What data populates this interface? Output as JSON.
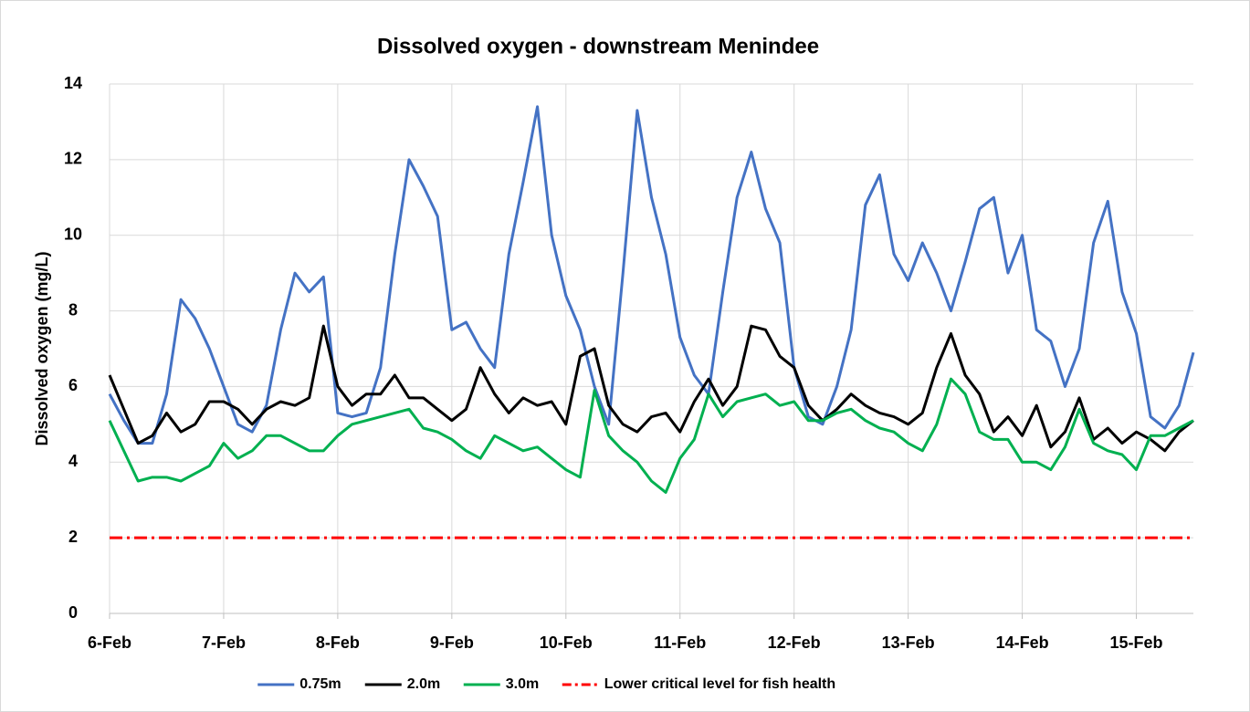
{
  "chart_data": {
    "type": "line",
    "title": "Dissolved oxygen - downstream Menindee",
    "y_label": "Dissolved oxygen (mg/L)",
    "xlim": [
      6,
      15.5
    ],
    "xticks": [
      {
        "value": 6,
        "label": "6-Feb"
      },
      {
        "value": 7,
        "label": "7-Feb"
      },
      {
        "value": 8,
        "label": "8-Feb"
      },
      {
        "value": 9,
        "label": "9-Feb"
      },
      {
        "value": 10,
        "label": "10-Feb"
      },
      {
        "value": 11,
        "label": "11-Feb"
      },
      {
        "value": 12,
        "label": "12-Feb"
      },
      {
        "value": 13,
        "label": "13-Feb"
      },
      {
        "value": 14,
        "label": "14-Feb"
      },
      {
        "value": 15,
        "label": "15-Feb"
      }
    ],
    "ylim": [
      0,
      14
    ],
    "yticks": [
      0,
      2,
      4,
      6,
      8,
      10,
      12,
      14
    ],
    "grid": true,
    "legend": "bottom",
    "x": [
      6,
      6.125,
      6.25,
      6.375,
      6.5,
      6.625,
      6.75,
      6.875,
      7,
      7.125,
      7.25,
      7.375,
      7.5,
      7.625,
      7.75,
      7.875,
      8,
      8.125,
      8.25,
      8.375,
      8.5,
      8.625,
      8.75,
      8.875,
      9,
      9.125,
      9.25,
      9.375,
      9.5,
      9.625,
      9.75,
      9.875,
      10,
      10.125,
      10.25,
      10.375,
      10.5,
      10.625,
      10.75,
      10.875,
      11,
      11.125,
      11.25,
      11.375,
      11.5,
      11.625,
      11.75,
      11.875,
      12,
      12.125,
      12.25,
      12.375,
      12.5,
      12.625,
      12.75,
      12.875,
      13,
      13.125,
      13.25,
      13.375,
      13.5,
      13.625,
      13.75,
      13.875,
      14,
      14.125,
      14.25,
      14.375,
      14.5,
      14.625,
      14.75,
      14.875,
      15,
      15.125,
      15.25,
      15.375,
      15.5
    ],
    "series": [
      {
        "name": "0.75m",
        "color": "#4472c4",
        "values": [
          5.8,
          5.1,
          4.5,
          4.5,
          5.8,
          8.3,
          7.8,
          7.0,
          6.0,
          5.0,
          4.8,
          5.5,
          7.5,
          9.0,
          8.5,
          8.9,
          5.3,
          5.2,
          5.3,
          6.5,
          9.5,
          12.0,
          11.3,
          10.5,
          7.5,
          7.7,
          7.0,
          6.5,
          9.5,
          11.4,
          13.4,
          10.0,
          8.4,
          7.5,
          6.0,
          5.0,
          9.0,
          13.3,
          11.0,
          9.5,
          7.3,
          6.3,
          5.8,
          8.5,
          11.0,
          12.2,
          10.7,
          9.8,
          6.5,
          5.2,
          5.0,
          6.0,
          7.5,
          10.8,
          11.6,
          9.5,
          8.8,
          9.8,
          9.0,
          8.0,
          9.3,
          10.7,
          11.0,
          9.0,
          10.0,
          7.5,
          7.2,
          6.0,
          7.0,
          9.8,
          10.9,
          8.5,
          7.4,
          5.2,
          4.9,
          5.5,
          6.9
        ]
      },
      {
        "name": "2.0m",
        "color": "#000000",
        "values": [
          6.3,
          5.4,
          4.5,
          4.7,
          5.3,
          4.8,
          5.0,
          5.6,
          5.6,
          5.4,
          5.0,
          5.4,
          5.6,
          5.5,
          5.7,
          7.6,
          6.0,
          5.5,
          5.8,
          5.8,
          6.3,
          5.7,
          5.7,
          5.4,
          5.1,
          5.4,
          6.5,
          5.8,
          5.3,
          5.7,
          5.5,
          5.6,
          5.0,
          6.8,
          7.0,
          5.5,
          5.0,
          4.8,
          5.2,
          5.3,
          4.8,
          5.6,
          6.2,
          5.5,
          6.0,
          7.6,
          7.5,
          6.8,
          6.5,
          5.5,
          5.1,
          5.4,
          5.8,
          5.5,
          5.3,
          5.2,
          5.0,
          5.3,
          6.5,
          7.4,
          6.3,
          5.8,
          4.8,
          5.2,
          4.7,
          5.5,
          4.4,
          4.8,
          5.7,
          4.6,
          4.9,
          4.5,
          4.8,
          4.6,
          4.3,
          4.8,
          5.1
        ]
      },
      {
        "name": "3.0m",
        "color": "#00b050",
        "values": [
          5.1,
          4.3,
          3.5,
          3.6,
          3.6,
          3.5,
          3.7,
          3.9,
          4.5,
          4.1,
          4.3,
          4.7,
          4.7,
          4.5,
          4.3,
          4.3,
          4.7,
          5.0,
          5.1,
          5.2,
          5.3,
          5.4,
          4.9,
          4.8,
          4.6,
          4.3,
          4.1,
          4.7,
          4.5,
          4.3,
          4.4,
          4.1,
          3.8,
          3.6,
          5.9,
          4.7,
          4.3,
          4.0,
          3.5,
          3.2,
          4.1,
          4.6,
          5.8,
          5.2,
          5.6,
          5.7,
          5.8,
          5.5,
          5.6,
          5.1,
          5.1,
          5.3,
          5.4,
          5.1,
          4.9,
          4.8,
          4.5,
          4.3,
          5.0,
          6.2,
          5.8,
          4.8,
          4.6,
          4.6,
          4.0,
          4.0,
          3.8,
          4.4,
          5.4,
          4.5,
          4.3,
          4.2,
          3.8,
          4.7,
          4.7,
          4.9,
          5.1
        ]
      }
    ],
    "reference_lines": [
      {
        "name": "Lower critical level for fish health",
        "value": 2,
        "color": "#ff0000"
      }
    ]
  }
}
